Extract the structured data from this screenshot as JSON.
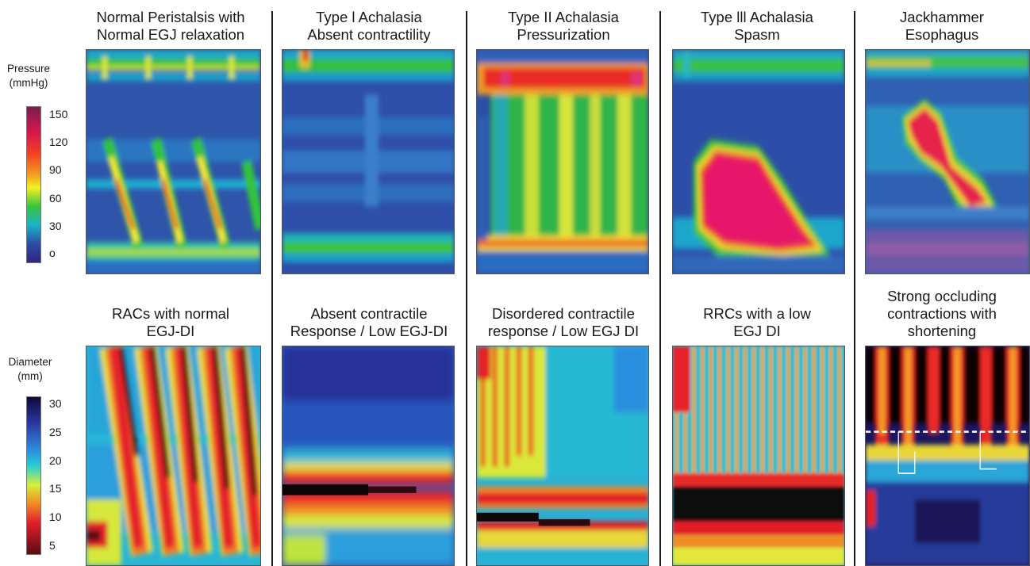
{
  "pressure_scale": {
    "title_line1": "Pressure",
    "title_line2": "(mmHg)",
    "ticks": [
      "150",
      "120",
      "90",
      "60",
      "30",
      "o"
    ],
    "colors": [
      "#7a1e4e",
      "#d4184d",
      "#f24023",
      "#f2a024",
      "#f4f025",
      "#38c33d",
      "#1db3c8",
      "#2c4da4",
      "#2e2580"
    ]
  },
  "diameter_scale": {
    "title_line1": "Diameter",
    "title_line2": "(mm)",
    "ticks": [
      "30",
      "25",
      "20",
      "15",
      "10",
      "5"
    ],
    "colors": [
      "#0d0a3a",
      "#2936a0",
      "#2a8fe0",
      "#27d0d2",
      "#d7ee3b",
      "#f08a25",
      "#e2202a",
      "#5a0c12"
    ]
  },
  "pressure_titles": [
    {
      "line1": "Normal Peristalsis with",
      "line2": "Normal EGJ relaxation"
    },
    {
      "line1": "Type l Achalasia",
      "line2": "Absent contractility"
    },
    {
      "line1": "Type II Achalasia",
      "line2": "Pressurization"
    },
    {
      "line1": "Type lll Achalasia",
      "line2": "Spasm"
    },
    {
      "line1": "Jackhammer",
      "line2": "Esophagus"
    }
  ],
  "diameter_titles": [
    {
      "line1": "RACs with normal",
      "line2": "EGJ-DI"
    },
    {
      "line1": "Absent contractile",
      "line2": "Response / Low EGJ-DI"
    },
    {
      "line1": "Disordered contractile",
      "line2": "response / Low EGJ DI"
    },
    {
      "line1": "RRCs with a low",
      "line2": "EGJ DI"
    },
    {
      "line1": "Strong occluding",
      "line2": "contractions with",
      "line3": "shortening"
    }
  ]
}
